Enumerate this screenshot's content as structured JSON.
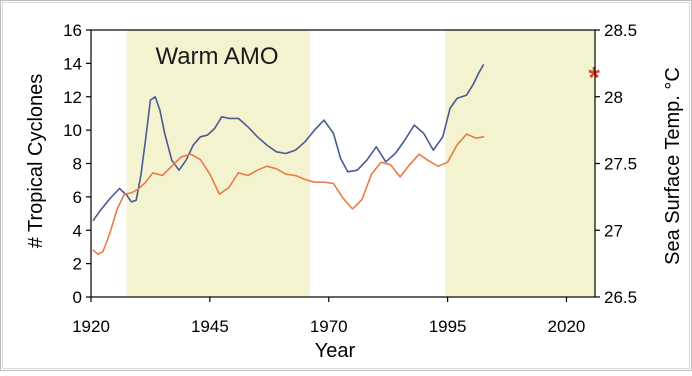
{
  "chart_data": {
    "type": "line",
    "xlabel": "Year",
    "ylabel": "# Tropical Cyclones",
    "y2label": "Sea Surface Temp. °C",
    "xlim": [
      1920,
      2026
    ],
    "ylim": [
      0,
      16
    ],
    "y2lim": [
      26.5,
      28.5
    ],
    "xticks": [
      1920,
      1945,
      1970,
      1995,
      2020
    ],
    "yticks": [
      0,
      2,
      4,
      6,
      8,
      10,
      12,
      14,
      16
    ],
    "y2ticks": [
      26.5,
      27,
      27.5,
      28,
      28.5
    ],
    "grid": false,
    "colors": {
      "background": "#ffffff",
      "shade": "#f3f3cf",
      "cyclones": "#4a5a92",
      "sst": "#ea7a4a",
      "sst_dark": "#d8482a",
      "marker": "#e0452a",
      "axis": "#000000"
    },
    "shaded_regions": [
      {
        "x_start": 1927.5,
        "x_end": 1966,
        "label": "Warm AMO"
      },
      {
        "x_start": 1994.5,
        "x_end": 2026,
        "label": ""
      }
    ],
    "series": [
      {
        "key": "cyclones",
        "axis": "left",
        "x": [
          1920.5,
          1922,
          1924,
          1926,
          1927.5,
          1928.5,
          1929.5,
          1930.5,
          1931.5,
          1932.5,
          1933.5,
          1934.5,
          1935.5,
          1937,
          1938.5,
          1940,
          1941.5,
          1943,
          1944.5,
          1946,
          1947.5,
          1949,
          1951,
          1953,
          1955,
          1957,
          1959,
          1961,
          1963,
          1965,
          1967,
          1969,
          1971,
          1972.5,
          1974,
          1976,
          1978,
          1980,
          1982,
          1984,
          1986,
          1988,
          1990,
          1992,
          1994,
          1995.5,
          1997,
          1999,
          2000.5,
          2001.5,
          2002.5
        ],
        "values": [
          4.6,
          5.2,
          5.9,
          6.5,
          6.1,
          5.7,
          5.8,
          7.3,
          9.5,
          11.8,
          12.0,
          11.2,
          9.8,
          8.2,
          7.6,
          8.2,
          9.1,
          9.6,
          9.7,
          10.1,
          10.8,
          10.7,
          10.7,
          10.2,
          9.6,
          9.1,
          8.7,
          8.6,
          8.8,
          9.3,
          10.0,
          10.6,
          9.8,
          8.3,
          7.5,
          7.6,
          8.2,
          9.0,
          8.1,
          8.6,
          9.4,
          10.3,
          9.8,
          8.8,
          9.6,
          11.3,
          11.9,
          12.1,
          12.8,
          13.4,
          13.9
        ]
      },
      {
        "key": "sst",
        "axis": "right",
        "x": [
          1920.5,
          1921.5,
          1922.5,
          1924,
          1925.5,
          1927,
          1928.5,
          1930,
          1931.5,
          1933,
          1935,
          1937,
          1939,
          1941,
          1943,
          1945,
          1947,
          1949,
          1951,
          1953,
          1955,
          1957,
          1959,
          1961,
          1963,
          1965,
          1967,
          1969,
          1971,
          1973,
          1975,
          1977,
          1979,
          1981,
          1983,
          1985,
          1987,
          1989,
          1991,
          1993,
          1995,
          1997,
          1999,
          2001,
          2002.5
        ],
        "values": [
          26.85,
          26.82,
          26.84,
          26.98,
          27.16,
          27.27,
          27.28,
          27.31,
          27.36,
          27.43,
          27.41,
          27.48,
          27.55,
          27.57,
          27.53,
          27.42,
          27.27,
          27.32,
          27.43,
          27.41,
          27.45,
          27.48,
          27.46,
          27.42,
          27.41,
          27.38,
          27.36,
          27.36,
          27.35,
          27.24,
          27.16,
          27.23,
          27.42,
          27.51,
          27.49,
          27.4,
          27.49,
          27.57,
          27.52,
          27.48,
          27.51,
          27.64,
          27.72,
          27.69,
          27.7
        ]
      }
    ],
    "annotations": [
      {
        "type": "marker",
        "symbol": "*",
        "axis": "right",
        "x": 2025.8,
        "value": 28.16
      }
    ]
  }
}
